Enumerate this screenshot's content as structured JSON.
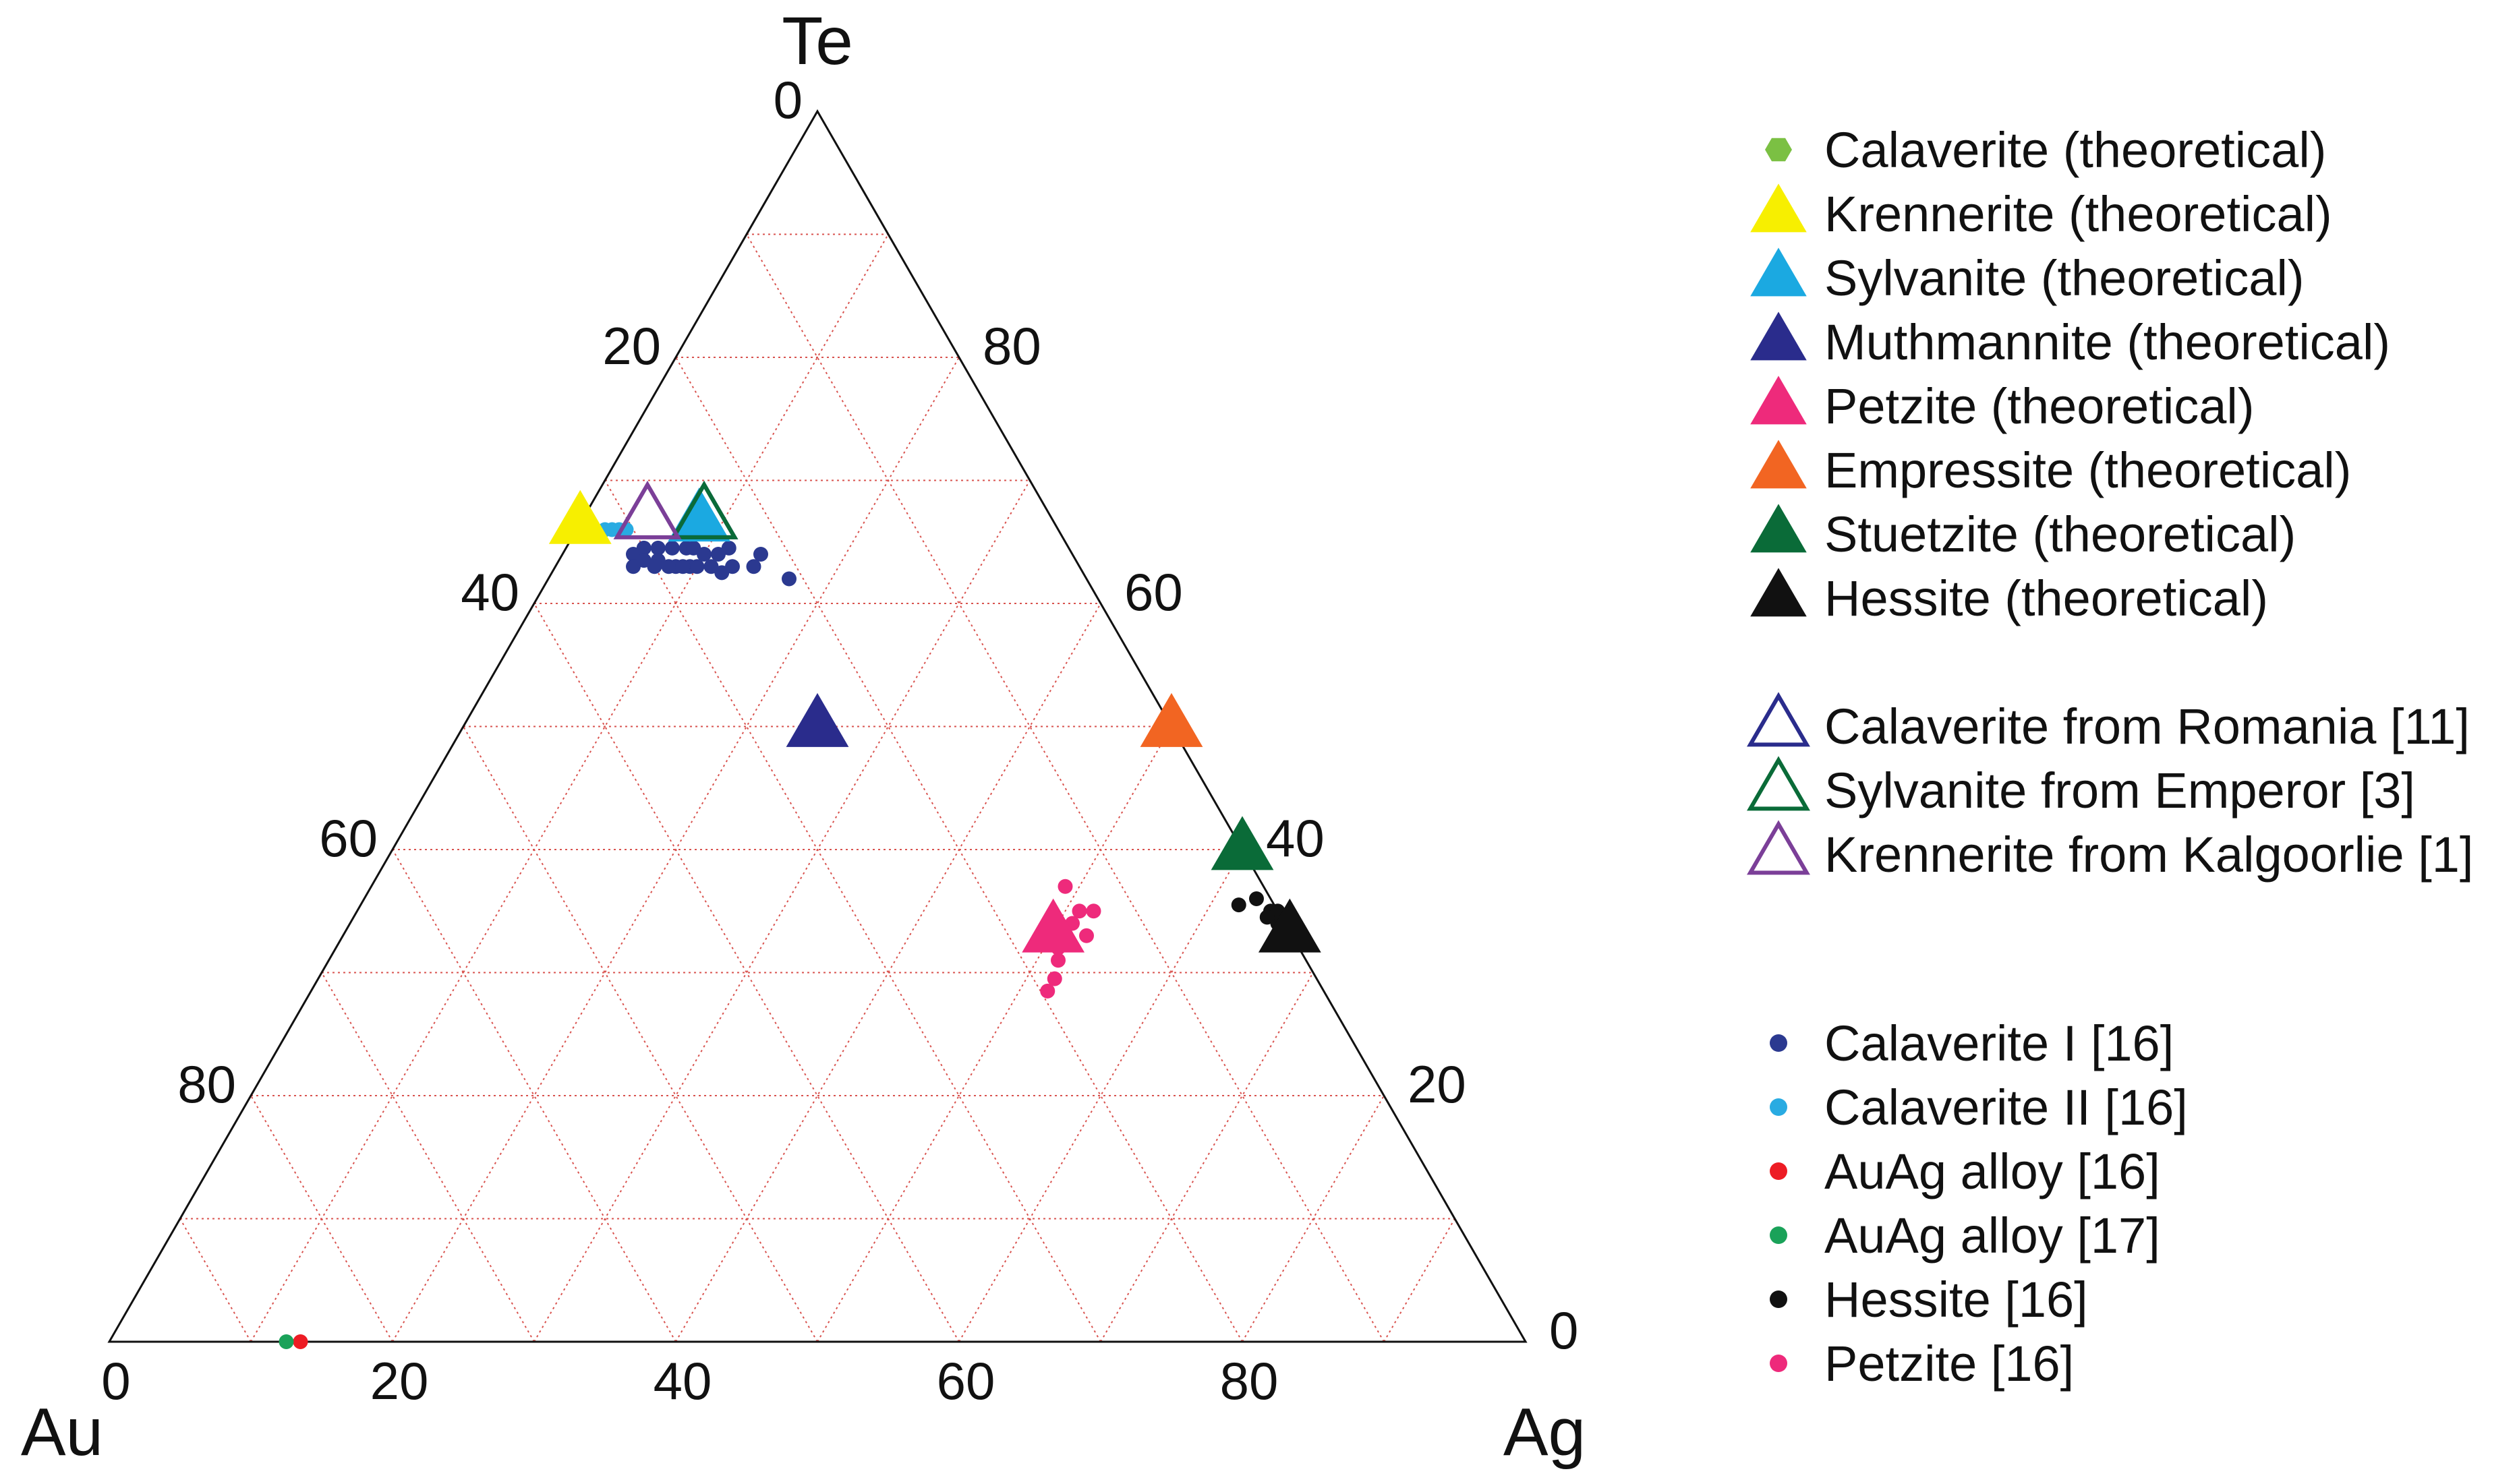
{
  "chart_data": {
    "type": "ternary-scatter",
    "vertices": {
      "top": "Te",
      "left": "Au",
      "right": "Ag"
    },
    "ticks": {
      "left_edge": [
        "0",
        "20",
        "40",
        "60",
        "80"
      ],
      "right_edge": [
        "80",
        "60",
        "40",
        "20",
        "0"
      ],
      "bottom_edge": [
        "0",
        "20",
        "40",
        "60",
        "80"
      ]
    },
    "grid": {
      "step": 10,
      "color": "#d9534f",
      "style": "dotted"
    },
    "theoretical": [
      {
        "name": "Calaverite (theoretical)",
        "shape": "hexagon",
        "filled": true,
        "color": "#7bc043",
        "points": [
          {
            "Au": 33.3,
            "Ag": 0.0,
            "Te": 66.7
          }
        ]
      },
      {
        "name": "Krennerite (theoretical)",
        "shape": "triangle",
        "filled": true,
        "color": "#f7ef00",
        "points": [
          {
            "Au": 33.5,
            "Ag": 0.0,
            "Te": 66.5
          }
        ]
      },
      {
        "name": "Sylvanite (theoretical)",
        "shape": "triangle",
        "filled": true,
        "color": "#1ba9e1",
        "points": [
          {
            "Au": 25.0,
            "Ag": 8.3,
            "Te": 66.7
          }
        ]
      },
      {
        "name": "Muthmannite (theoretical)",
        "shape": "triangle",
        "filled": true,
        "color": "#2a2c8c",
        "points": [
          {
            "Au": 25.0,
            "Ag": 25.0,
            "Te": 50.0
          }
        ]
      },
      {
        "name": "Petzite (theoretical)",
        "shape": "triangle",
        "filled": true,
        "color": "#ee2a7b",
        "points": [
          {
            "Au": 16.7,
            "Ag": 50.0,
            "Te": 33.3
          }
        ]
      },
      {
        "name": "Empressite (theoretical)",
        "shape": "triangle",
        "filled": true,
        "color": "#f26522",
        "points": [
          {
            "Au": 0.0,
            "Ag": 50.0,
            "Te": 50.0
          }
        ]
      },
      {
        "name": "Stuetzite (theoretical)",
        "shape": "triangle",
        "filled": true,
        "color": "#0a6b38",
        "points": [
          {
            "Au": 0.0,
            "Ag": 60.0,
            "Te": 40.0
          }
        ]
      },
      {
        "name": "Hessite (theoretical)",
        "shape": "triangle",
        "filled": true,
        "color": "#111111",
        "points": [
          {
            "Au": 0.0,
            "Ag": 66.7,
            "Te": 33.3
          }
        ]
      }
    ],
    "references": [
      {
        "name": "Calaverite from Romania [11]",
        "shape": "triangle",
        "filled": false,
        "color": "#2a2c8c",
        "points": [
          {
            "Au": 24.5,
            "Ag": 8.5,
            "Te": 67.0
          }
        ]
      },
      {
        "name": "Sylvanite from Emperor [3]",
        "shape": "triangle",
        "filled": false,
        "color": "#0a6b38",
        "points": [
          {
            "Au": 24.5,
            "Ag": 8.5,
            "Te": 67.0
          }
        ]
      },
      {
        "name": "Krennerite from Kalgoorlie [1]",
        "shape": "triangle",
        "filled": false,
        "color": "#7b3f98",
        "points": [
          {
            "Au": 28.5,
            "Ag": 4.5,
            "Te": 67.0
          }
        ]
      }
    ],
    "analyses": [
      {
        "name": "Calaverite I [16]",
        "shape": "dot",
        "color": "#2b3990",
        "points": [
          {
            "Au": 31.0,
            "Ag": 5.0
          },
          {
            "Au": 30.0,
            "Ag": 5.5
          },
          {
            "Au": 29.0,
            "Ag": 6.5
          },
          {
            "Au": 28.0,
            "Ag": 7.5
          },
          {
            "Au": 27.0,
            "Ag": 8.5
          },
          {
            "Au": 26.5,
            "Ag": 9.0
          },
          {
            "Au": 26.0,
            "Ag": 10.0
          },
          {
            "Au": 25.0,
            "Ag": 11.0
          },
          {
            "Au": 24.0,
            "Ag": 11.5
          },
          {
            "Au": 30.5,
            "Ag": 6.0
          },
          {
            "Au": 29.5,
            "Ag": 7.0
          },
          {
            "Au": 28.5,
            "Ag": 8.5
          },
          {
            "Au": 27.5,
            "Ag": 9.5
          },
          {
            "Au": 26.0,
            "Ag": 11.0
          },
          {
            "Au": 31.5,
            "Ag": 5.5
          },
          {
            "Au": 30.0,
            "Ag": 7.0
          },
          {
            "Au": 29.0,
            "Ag": 8.0
          },
          {
            "Au": 27.0,
            "Ag": 10.0
          },
          {
            "Au": 28.0,
            "Ag": 9.0
          },
          {
            "Au": 25.5,
            "Ag": 12.0
          },
          {
            "Au": 24.5,
            "Ag": 12.5
          },
          {
            "Au": 23.0,
            "Ag": 14.0
          },
          {
            "Au": 22.0,
            "Ag": 14.0
          },
          {
            "Au": 21.0,
            "Ag": 17.0
          }
        ]
      },
      {
        "name": "Calaverite II [16]",
        "shape": "dot",
        "color": "#29abe2",
        "points": [
          {
            "Au": 32.0,
            "Ag": 2.0
          },
          {
            "Au": 31.5,
            "Ag": 2.5
          },
          {
            "Au": 31.0,
            "Ag": 3.0
          },
          {
            "Au": 30.5,
            "Ag": 3.5
          }
        ]
      },
      {
        "name": "AuAg alloy [16]",
        "shape": "dot",
        "color": "#ed1c24",
        "points": [
          {
            "Au": 86.5,
            "Ag": 13.5,
            "Te": 0.0
          }
        ]
      },
      {
        "name": "AuAg alloy [17]",
        "shape": "dot",
        "color": "#1aa259",
        "points": [
          {
            "Au": 87.5,
            "Ag": 12.5,
            "Te": 0.0
          }
        ]
      },
      {
        "name": "Hessite [16]",
        "shape": "dot",
        "color": "#111111",
        "points": [
          {
            "Au": 1.0,
            "Ag": 63.0
          },
          {
            "Au": 0.5,
            "Ag": 64.5
          },
          {
            "Au": 0.0,
            "Ag": 65.0
          },
          {
            "Au": 0.5,
            "Ag": 65.5
          },
          {
            "Au": 0.0,
            "Ag": 66.0
          },
          {
            "Au": 1.0,
            "Ag": 64.5
          },
          {
            "Au": 0.0,
            "Ag": 67.0
          },
          {
            "Au": 2.5,
            "Ag": 62.0
          },
          {
            "Au": 0.5,
            "Ag": 66.5
          },
          {
            "Au": 1.0,
            "Ag": 66.0
          }
        ]
      },
      {
        "name": "Petzite [16]",
        "shape": "dot",
        "color": "#ee2a7b",
        "points": [
          {
            "Au": 14.0,
            "Ag": 49.0
          },
          {
            "Au": 13.0,
            "Ag": 52.0
          },
          {
            "Au": 14.0,
            "Ag": 51.0
          },
          {
            "Au": 15.0,
            "Ag": 51.0
          },
          {
            "Au": 16.0,
            "Ag": 51.5
          },
          {
            "Au": 17.0,
            "Ag": 51.0
          },
          {
            "Au": 17.5,
            "Ag": 51.5
          },
          {
            "Au": 18.5,
            "Ag": 52.0
          },
          {
            "Au": 19.5,
            "Ag": 52.0
          },
          {
            "Au": 14.5,
            "Ag": 52.5
          }
        ]
      }
    ],
    "legend": {
      "placement": "right",
      "groups": [
        [
          "Calaverite (theoretical)",
          "Krennerite (theoretical)",
          "Sylvanite (theoretical)",
          "Muthmannite (theoretical)",
          "Petzite (theoretical)",
          "Empressite (theoretical)",
          "Stuetzite (theoretical)",
          "Hessite (theoretical)"
        ],
        [
          "Calaverite from Romania [11]",
          "Sylvanite from Emperor [3]",
          "Krennerite from Kalgoorlie [1]"
        ],
        [
          "Calaverite I [16]",
          "Calaverite II [16]",
          "AuAg alloy [16]",
          "AuAg alloy [17]",
          "Hessite [16]",
          "Petzite [16]"
        ]
      ]
    }
  }
}
